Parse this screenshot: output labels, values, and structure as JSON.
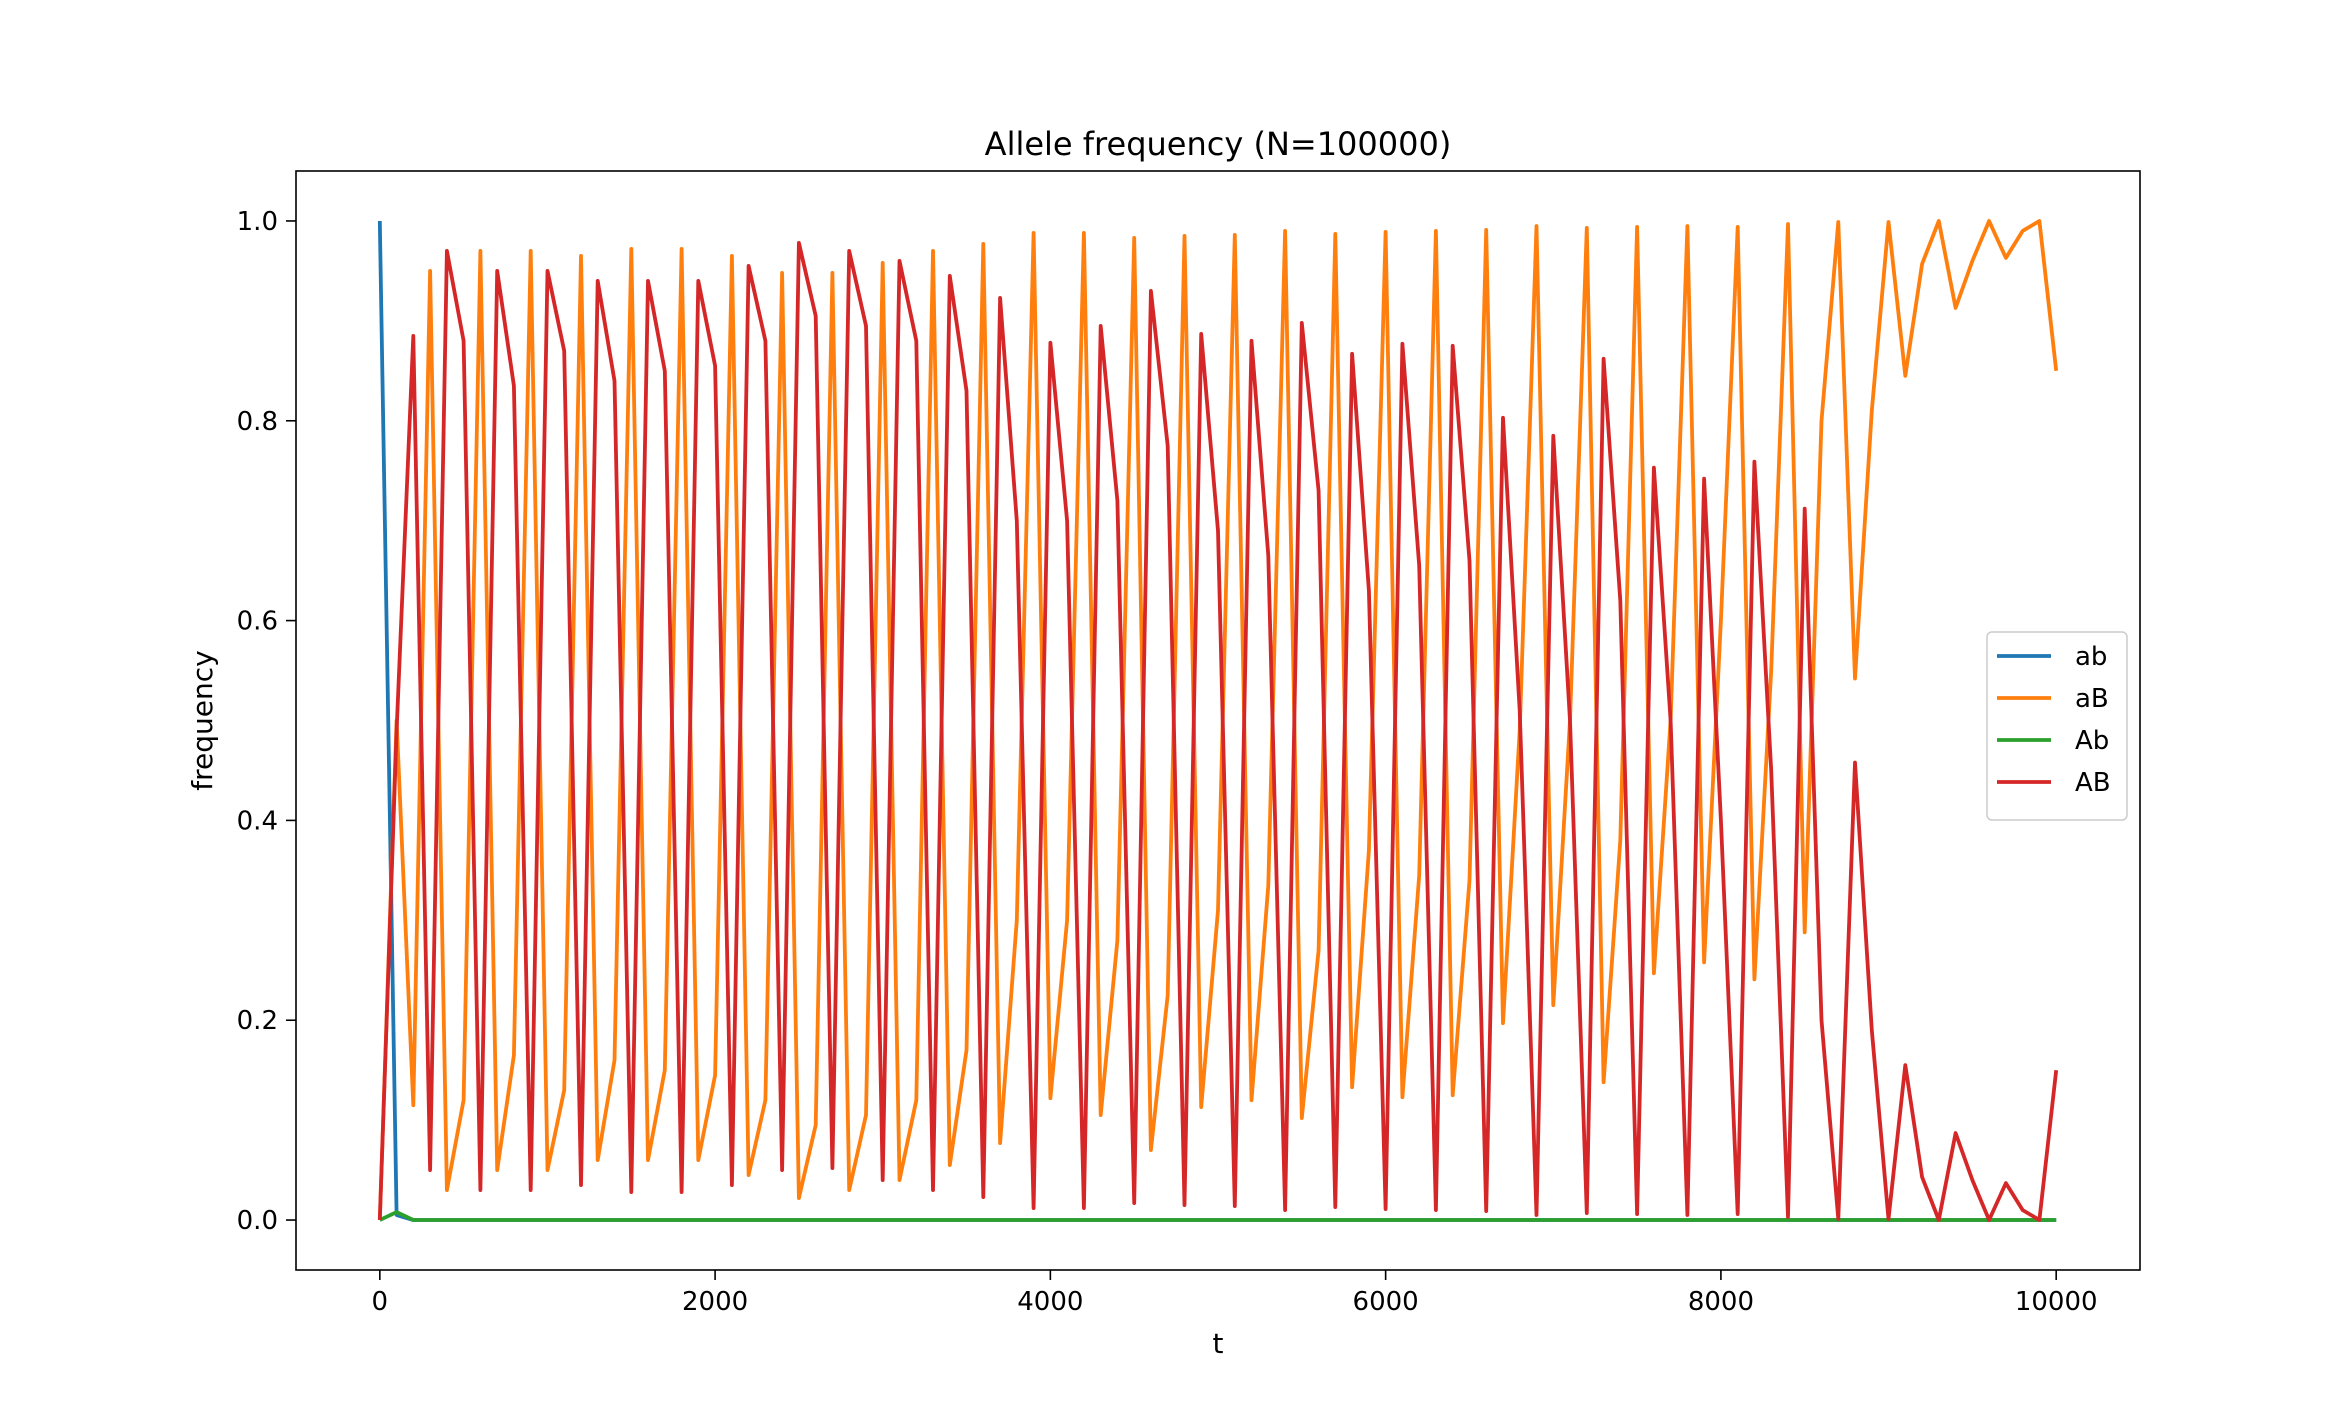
{
  "chart_data": {
    "type": "line",
    "title": "Allele frequency (N=100000)",
    "xlabel": "t",
    "ylabel": "frequency",
    "xlim": [
      -500,
      10500
    ],
    "ylim": [
      -0.05,
      1.05
    ],
    "xticks": [
      0,
      2000,
      4000,
      6000,
      8000,
      10000
    ],
    "xtick_labels": [
      "0",
      "2000",
      "4000",
      "6000",
      "8000",
      "10000"
    ],
    "yticks": [
      0.0,
      0.2,
      0.4,
      0.6,
      0.8,
      1.0
    ],
    "ytick_labels": [
      "0.0",
      "0.2",
      "0.4",
      "0.6",
      "0.8",
      "1.0"
    ],
    "grid": false,
    "legend_position": "center-right",
    "series": [
      {
        "name": "ab",
        "color": "#1f77b4",
        "x": [
          0,
          100,
          200,
          10000
        ],
        "y": [
          1.0,
          0.005,
          0.0,
          0.0
        ]
      },
      {
        "name": "aB",
        "color": "#ff7f0e",
        "x": [
          0,
          100,
          200,
          300,
          400,
          500,
          600,
          700,
          800,
          900,
          1000,
          1100,
          1200,
          1300,
          1400,
          1500,
          1600,
          1700,
          1800,
          1900,
          2000,
          2100,
          2200,
          2300,
          2400,
          2500,
          2600,
          2700,
          2800,
          2900,
          3000,
          3100,
          3200,
          3300,
          3400,
          3500,
          3600,
          3700,
          3800,
          3900,
          4000,
          4100,
          4200,
          4300,
          4400,
          4500,
          4600,
          4700,
          4800,
          4900,
          5000,
          5100,
          5200,
          5300,
          5400,
          5500,
          5600,
          5700,
          5800,
          5900,
          6000,
          6100,
          6200,
          6300,
          6400,
          6500,
          6600,
          6700,
          6800,
          6900,
          7000,
          7100,
          7200,
          7300,
          7400,
          7500,
          7600,
          7700,
          7800,
          7900,
          8000,
          8100,
          8200,
          8300,
          8400,
          8500,
          8600,
          8700,
          8800,
          8900,
          9000,
          9100,
          9200,
          9300,
          9400,
          9500,
          9600,
          9700,
          9800,
          9900,
          10000
        ],
        "y": [
          0.0,
          0.5,
          0.115,
          0.95,
          0.03,
          0.12,
          0.97,
          0.05,
          0.165,
          0.97,
          0.05,
          0.13,
          0.965,
          0.06,
          0.16,
          0.972,
          0.06,
          0.15,
          0.972,
          0.06,
          0.145,
          0.965,
          0.045,
          0.12,
          0.948,
          0.022,
          0.095,
          0.948,
          0.03,
          0.105,
          0.958,
          0.04,
          0.12,
          0.97,
          0.055,
          0.17,
          0.977,
          0.077,
          0.3,
          0.988,
          0.122,
          0.3,
          0.988,
          0.105,
          0.28,
          0.983,
          0.07,
          0.225,
          0.985,
          0.113,
          0.31,
          0.986,
          0.12,
          0.335,
          0.99,
          0.102,
          0.27,
          0.987,
          0.133,
          0.37,
          0.989,
          0.123,
          0.345,
          0.99,
          0.125,
          0.34,
          0.991,
          0.197,
          0.49,
          0.995,
          0.215,
          0.5,
          0.993,
          0.138,
          0.38,
          0.994,
          0.247,
          0.5,
          0.995,
          0.258,
          0.6,
          0.994,
          0.241,
          0.55,
          0.997,
          0.288,
          0.8,
          0.999,
          0.542,
          0.81,
          0.999,
          0.845,
          0.957,
          1.0,
          0.913,
          0.96,
          1.0,
          0.963,
          0.99,
          1.0,
          0.85
        ]
      },
      {
        "name": "Ab",
        "color": "#2ca02c",
        "x": [
          0,
          100,
          200,
          10000
        ],
        "y": [
          0.0,
          0.008,
          0.0,
          0.0
        ]
      },
      {
        "name": "AB",
        "color": "#d62728",
        "x": [
          0,
          100,
          200,
          300,
          400,
          500,
          600,
          700,
          800,
          900,
          1000,
          1100,
          1200,
          1300,
          1400,
          1500,
          1600,
          1700,
          1800,
          1900,
          2000,
          2100,
          2200,
          2300,
          2400,
          2500,
          2600,
          2700,
          2800,
          2900,
          3000,
          3100,
          3200,
          3300,
          3400,
          3500,
          3600,
          3700,
          3800,
          3900,
          4000,
          4100,
          4200,
          4300,
          4400,
          4500,
          4600,
          4700,
          4800,
          4900,
          5000,
          5100,
          5200,
          5300,
          5400,
          5500,
          5600,
          5700,
          5800,
          5900,
          6000,
          6100,
          6200,
          6300,
          6400,
          6500,
          6600,
          6700,
          6800,
          6900,
          7000,
          7100,
          7200,
          7300,
          7400,
          7500,
          7600,
          7700,
          7800,
          7900,
          8000,
          8100,
          8200,
          8300,
          8400,
          8500,
          8600,
          8700,
          8800,
          8900,
          9000,
          9100,
          9200,
          9300,
          9400,
          9500,
          9600,
          9700,
          9800,
          9900,
          10000
        ],
        "y": [
          0.0,
          0.49,
          0.885,
          0.05,
          0.97,
          0.88,
          0.03,
          0.95,
          0.835,
          0.03,
          0.95,
          0.87,
          0.035,
          0.94,
          0.84,
          0.028,
          0.94,
          0.85,
          0.028,
          0.94,
          0.855,
          0.035,
          0.955,
          0.88,
          0.05,
          0.978,
          0.905,
          0.052,
          0.97,
          0.895,
          0.04,
          0.96,
          0.88,
          0.03,
          0.945,
          0.83,
          0.023,
          0.923,
          0.7,
          0.012,
          0.878,
          0.7,
          0.012,
          0.895,
          0.72,
          0.017,
          0.93,
          0.775,
          0.015,
          0.887,
          0.69,
          0.014,
          0.88,
          0.665,
          0.01,
          0.898,
          0.73,
          0.013,
          0.867,
          0.63,
          0.011,
          0.877,
          0.655,
          0.01,
          0.875,
          0.66,
          0.009,
          0.803,
          0.51,
          0.005,
          0.785,
          0.5,
          0.007,
          0.862,
          0.62,
          0.006,
          0.753,
          0.5,
          0.005,
          0.742,
          0.4,
          0.006,
          0.759,
          0.45,
          0.003,
          0.712,
          0.2,
          0.001,
          0.458,
          0.19,
          0.001,
          0.155,
          0.043,
          0.0,
          0.087,
          0.04,
          0.0,
          0.037,
          0.01,
          0.0,
          0.15
        ]
      }
    ]
  }
}
